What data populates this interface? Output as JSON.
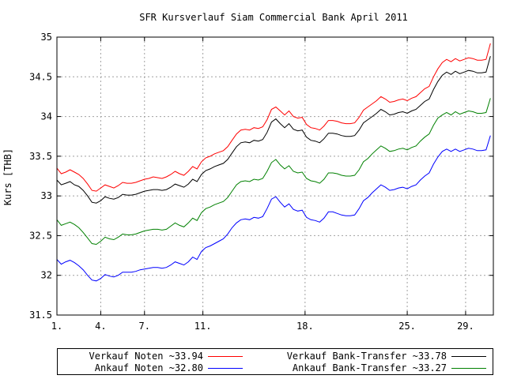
{
  "chart_data": {
    "type": "line",
    "title": "SFR Kursverlauf Siam Commercial Bank April 2011",
    "xlabel": "",
    "ylabel": "Kurs [THB]",
    "ylim": [
      31.5,
      35
    ],
    "yticks": [
      "31.5",
      "32",
      "32.5",
      "33",
      "33.5",
      "34",
      "34.5",
      "35"
    ],
    "xlim": [
      1,
      30.9
    ],
    "xticks": [
      {
        "value": 1,
        "label": "1."
      },
      {
        "value": 4,
        "label": "4."
      },
      {
        "value": 7,
        "label": "7."
      },
      {
        "value": 11,
        "label": "11."
      },
      {
        "value": 18,
        "label": "18."
      },
      {
        "value": 25,
        "label": "25."
      },
      {
        "value": 29,
        "label": "29."
      }
    ],
    "grid": true,
    "legend_position": "bottom",
    "series": [
      {
        "name": "Verkauf Noten ~33.94",
        "color": "#ff0000",
        "x": [
          1,
          1.3,
          1.6,
          1.9,
          2.2,
          2.5,
          2.8,
          3.1,
          3.4,
          3.7,
          4,
          4.3,
          4.6,
          4.9,
          5.2,
          5.5,
          5.8,
          6.1,
          6.4,
          6.7,
          7,
          7.3,
          7.6,
          7.9,
          8.2,
          8.5,
          8.8,
          9.1,
          9.4,
          9.7,
          10,
          10.3,
          10.6,
          10.9,
          11.2,
          11.5,
          11.8,
          12.1,
          12.4,
          12.7,
          13,
          13.3,
          13.6,
          13.9,
          14.2,
          14.5,
          14.8,
          15.1,
          15.4,
          15.7,
          16,
          16.3,
          16.6,
          16.9,
          17.2,
          17.5,
          17.8,
          18.1,
          18.4,
          18.7,
          19,
          19.3,
          19.6,
          19.9,
          20.2,
          20.5,
          20.8,
          21.1,
          21.4,
          21.7,
          22,
          22.3,
          22.6,
          22.9,
          23.2,
          23.5,
          23.8,
          24.1,
          24.4,
          24.7,
          25,
          25.3,
          25.6,
          25.9,
          26.2,
          26.5,
          26.8,
          27.1,
          27.4,
          27.7,
          28,
          28.3,
          28.6,
          28.9,
          29.2,
          29.5,
          29.8,
          30.1,
          30.4,
          30.7
        ],
        "values": [
          33.35,
          33.28,
          33.3,
          33.33,
          33.3,
          33.27,
          33.22,
          33.15,
          33.07,
          33.06,
          33.1,
          33.14,
          33.12,
          33.1,
          33.13,
          33.17,
          33.16,
          33.16,
          33.17,
          33.19,
          33.21,
          33.22,
          33.24,
          33.23,
          33.22,
          33.24,
          33.27,
          33.31,
          33.28,
          33.26,
          33.31,
          33.37,
          33.34,
          33.43,
          33.48,
          33.5,
          33.53,
          33.55,
          33.57,
          33.62,
          33.7,
          33.78,
          33.83,
          33.84,
          33.83,
          33.86,
          33.85,
          33.87,
          33.96,
          34.09,
          34.12,
          34.07,
          34.02,
          34.07,
          34.0,
          33.98,
          33.99,
          33.9,
          33.86,
          33.85,
          33.83,
          33.88,
          33.95,
          33.95,
          33.94,
          33.92,
          33.91,
          33.91,
          33.92,
          33.99,
          34.08,
          34.12,
          34.16,
          34.2,
          34.25,
          34.22,
          34.18,
          34.19,
          34.21,
          34.22,
          34.2,
          34.23,
          34.25,
          34.3,
          34.35,
          34.38,
          34.5,
          34.6,
          34.68,
          34.72,
          34.69,
          34.73,
          34.7,
          34.72,
          34.74,
          34.73,
          34.71,
          34.71,
          34.72,
          34.92
        ]
      },
      {
        "name": "Verkauf Bank-Transfer ~33.78",
        "color": "#000000",
        "x": [
          1,
          1.3,
          1.6,
          1.9,
          2.2,
          2.5,
          2.8,
          3.1,
          3.4,
          3.7,
          4,
          4.3,
          4.6,
          4.9,
          5.2,
          5.5,
          5.8,
          6.1,
          6.4,
          6.7,
          7,
          7.3,
          7.6,
          7.9,
          8.2,
          8.5,
          8.8,
          9.1,
          9.4,
          9.7,
          10,
          10.3,
          10.6,
          10.9,
          11.2,
          11.5,
          11.8,
          12.1,
          12.4,
          12.7,
          13,
          13.3,
          13.6,
          13.9,
          14.2,
          14.5,
          14.8,
          15.1,
          15.4,
          15.7,
          16,
          16.3,
          16.6,
          16.9,
          17.2,
          17.5,
          17.8,
          18.1,
          18.4,
          18.7,
          19,
          19.3,
          19.6,
          19.9,
          20.2,
          20.5,
          20.8,
          21.1,
          21.4,
          21.7,
          22,
          22.3,
          22.6,
          22.9,
          23.2,
          23.5,
          23.8,
          24.1,
          24.4,
          24.7,
          25,
          25.3,
          25.6,
          25.9,
          26.2,
          26.5,
          26.8,
          27.1,
          27.4,
          27.7,
          28,
          28.3,
          28.6,
          28.9,
          29.2,
          29.5,
          29.8,
          30.1,
          30.4,
          30.7
        ],
        "values": [
          33.2,
          33.14,
          33.16,
          33.18,
          33.14,
          33.12,
          33.07,
          33.0,
          32.92,
          32.91,
          32.94,
          32.99,
          32.97,
          32.96,
          32.98,
          33.02,
          33.01,
          33.01,
          33.02,
          33.04,
          33.06,
          33.07,
          33.08,
          33.08,
          33.07,
          33.08,
          33.11,
          33.15,
          33.13,
          33.11,
          33.15,
          33.21,
          33.18,
          33.27,
          33.32,
          33.34,
          33.37,
          33.39,
          33.41,
          33.46,
          33.54,
          33.62,
          33.67,
          33.68,
          33.67,
          33.7,
          33.69,
          33.71,
          33.8,
          33.93,
          33.97,
          33.91,
          33.86,
          33.91,
          33.84,
          33.82,
          33.83,
          33.74,
          33.7,
          33.69,
          33.67,
          33.72,
          33.79,
          33.79,
          33.78,
          33.76,
          33.75,
          33.75,
          33.76,
          33.83,
          33.92,
          33.96,
          34.0,
          34.04,
          34.09,
          34.06,
          34.02,
          34.03,
          34.05,
          34.06,
          34.04,
          34.07,
          34.09,
          34.14,
          34.19,
          34.22,
          34.34,
          34.44,
          34.52,
          34.56,
          34.53,
          34.57,
          34.54,
          34.56,
          34.58,
          34.57,
          34.55,
          34.55,
          34.56,
          34.76
        ]
      },
      {
        "name": "Ankauf Noten ~32.80",
        "color": "#0000ff",
        "x": [
          1,
          1.3,
          1.6,
          1.9,
          2.2,
          2.5,
          2.8,
          3.1,
          3.4,
          3.7,
          4,
          4.3,
          4.6,
          4.9,
          5.2,
          5.5,
          5.8,
          6.1,
          6.4,
          6.7,
          7,
          7.3,
          7.6,
          7.9,
          8.2,
          8.5,
          8.8,
          9.1,
          9.4,
          9.7,
          10,
          10.3,
          10.6,
          10.9,
          11.2,
          11.5,
          11.8,
          12.1,
          12.4,
          12.7,
          13,
          13.3,
          13.6,
          13.9,
          14.2,
          14.5,
          14.8,
          15.1,
          15.4,
          15.7,
          16,
          16.3,
          16.6,
          16.9,
          17.2,
          17.5,
          17.8,
          18.1,
          18.4,
          18.7,
          19,
          19.3,
          19.6,
          19.9,
          20.2,
          20.5,
          20.8,
          21.1,
          21.4,
          21.7,
          22,
          22.3,
          22.6,
          22.9,
          23.2,
          23.5,
          23.8,
          24.1,
          24.4,
          24.7,
          25,
          25.3,
          25.6,
          25.9,
          26.2,
          26.5,
          26.8,
          27.1,
          27.4,
          27.7,
          28,
          28.3,
          28.6,
          28.9,
          29.2,
          29.5,
          29.8,
          30.1,
          30.4,
          30.7
        ],
        "values": [
          32.2,
          32.14,
          32.17,
          32.19,
          32.16,
          32.12,
          32.07,
          32.0,
          31.94,
          31.93,
          31.96,
          32.01,
          31.99,
          31.98,
          32.0,
          32.04,
          32.04,
          32.04,
          32.05,
          32.07,
          32.08,
          32.09,
          32.1,
          32.1,
          32.09,
          32.1,
          32.13,
          32.17,
          32.15,
          32.13,
          32.17,
          32.23,
          32.2,
          32.3,
          32.35,
          32.37,
          32.4,
          32.43,
          32.46,
          32.52,
          32.6,
          32.66,
          32.7,
          32.71,
          32.7,
          32.73,
          32.72,
          32.74,
          32.84,
          32.96,
          32.99,
          32.92,
          32.86,
          32.9,
          32.83,
          32.81,
          32.82,
          32.73,
          32.7,
          32.69,
          32.67,
          32.72,
          32.8,
          32.8,
          32.78,
          32.76,
          32.75,
          32.75,
          32.76,
          32.84,
          32.94,
          32.98,
          33.04,
          33.09,
          33.14,
          33.11,
          33.07,
          33.08,
          33.1,
          33.11,
          33.09,
          33.12,
          33.14,
          33.2,
          33.25,
          33.29,
          33.4,
          33.49,
          33.56,
          33.59,
          33.56,
          33.59,
          33.56,
          33.58,
          33.6,
          33.59,
          33.57,
          33.57,
          33.58,
          33.76
        ]
      },
      {
        "name": "Ankauf Bank-Transfer ~33.27",
        "color": "#008000",
        "x": [
          1,
          1.3,
          1.6,
          1.9,
          2.2,
          2.5,
          2.8,
          3.1,
          3.4,
          3.7,
          4,
          4.3,
          4.6,
          4.9,
          5.2,
          5.5,
          5.8,
          6.1,
          6.4,
          6.7,
          7,
          7.3,
          7.6,
          7.9,
          8.2,
          8.5,
          8.8,
          9.1,
          9.4,
          9.7,
          10,
          10.3,
          10.6,
          10.9,
          11.2,
          11.5,
          11.8,
          12.1,
          12.4,
          12.7,
          13,
          13.3,
          13.6,
          13.9,
          14.2,
          14.5,
          14.8,
          15.1,
          15.4,
          15.7,
          16,
          16.3,
          16.6,
          16.9,
          17.2,
          17.5,
          17.8,
          18.1,
          18.4,
          18.7,
          19,
          19.3,
          19.6,
          19.9,
          20.2,
          20.5,
          20.8,
          21.1,
          21.4,
          21.7,
          22,
          22.3,
          22.6,
          22.9,
          23.2,
          23.5,
          23.8,
          24.1,
          24.4,
          24.7,
          25,
          25.3,
          25.6,
          25.9,
          26.2,
          26.5,
          26.8,
          27.1,
          27.4,
          27.7,
          28,
          28.3,
          28.6,
          28.9,
          29.2,
          29.5,
          29.8,
          30.1,
          30.4,
          30.7
        ],
        "values": [
          32.7,
          32.63,
          32.65,
          32.67,
          32.64,
          32.6,
          32.54,
          32.47,
          32.4,
          32.39,
          32.43,
          32.48,
          32.46,
          32.45,
          32.48,
          32.52,
          32.51,
          32.51,
          32.52,
          32.54,
          32.56,
          32.57,
          32.58,
          32.58,
          32.57,
          32.58,
          32.62,
          32.66,
          32.63,
          32.61,
          32.66,
          32.72,
          32.69,
          32.79,
          32.84,
          32.86,
          32.89,
          32.91,
          32.93,
          32.98,
          33.06,
          33.14,
          33.18,
          33.19,
          33.18,
          33.21,
          33.2,
          33.22,
          33.31,
          33.42,
          33.46,
          33.39,
          33.34,
          33.38,
          33.31,
          33.29,
          33.3,
          33.22,
          33.19,
          33.18,
          33.16,
          33.21,
          33.29,
          33.29,
          33.28,
          33.26,
          33.25,
          33.25,
          33.26,
          33.33,
          33.43,
          33.47,
          33.53,
          33.58,
          33.63,
          33.6,
          33.56,
          33.57,
          33.59,
          33.6,
          33.58,
          33.61,
          33.63,
          33.69,
          33.74,
          33.78,
          33.89,
          33.98,
          34.02,
          34.05,
          34.02,
          34.06,
          34.03,
          34.05,
          34.07,
          34.06,
          34.04,
          34.04,
          34.05,
          34.23
        ]
      }
    ]
  },
  "legend": {
    "items": [
      {
        "label": "Verkauf Noten ~33.94",
        "color": "#ff0000"
      },
      {
        "label": "Verkauf Bank-Transfer ~33.78",
        "color": "#000000"
      },
      {
        "label": "Ankauf Noten ~32.80",
        "color": "#0000ff"
      },
      {
        "label": "Ankauf Bank-Transfer ~33.27",
        "color": "#008000"
      }
    ]
  }
}
